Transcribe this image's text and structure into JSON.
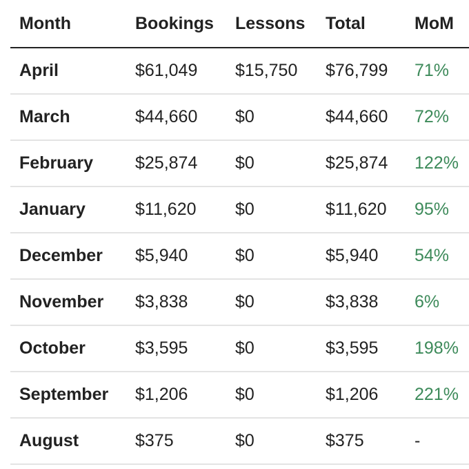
{
  "table": {
    "headers": [
      "Month",
      "Bookings",
      "Lessons",
      "Total",
      "MoM"
    ],
    "rows": [
      {
        "month": "April",
        "bookings": "$61,049",
        "lessons": "$15,750",
        "total": "$76,799",
        "mom": "71%"
      },
      {
        "month": "March",
        "bookings": "$44,660",
        "lessons": "$0",
        "total": "$44,660",
        "mom": "72%"
      },
      {
        "month": "February",
        "bookings": "$25,874",
        "lessons": "$0",
        "total": "$25,874",
        "mom": "122%"
      },
      {
        "month": "January",
        "bookings": "$11,620",
        "lessons": "$0",
        "total": "$11,620",
        "mom": "95%"
      },
      {
        "month": "December",
        "bookings": "$5,940",
        "lessons": "$0",
        "total": "$5,940",
        "mom": "54%"
      },
      {
        "month": "November",
        "bookings": "$3,838",
        "lessons": "$0",
        "total": "$3,838",
        "mom": "6%"
      },
      {
        "month": "October",
        "bookings": "$3,595",
        "lessons": "$0",
        "total": "$3,595",
        "mom": "198%"
      },
      {
        "month": "September",
        "bookings": "$1,206",
        "lessons": "$0",
        "total": "$1,206",
        "mom": "221%"
      },
      {
        "month": "August",
        "bookings": "$375",
        "lessons": "$0",
        "total": "$375",
        "mom": "-"
      }
    ]
  },
  "colors": {
    "text": "#222222",
    "positive": "#3d8a5a",
    "divider": "#e3e3e3",
    "header_rule": "#222222"
  }
}
